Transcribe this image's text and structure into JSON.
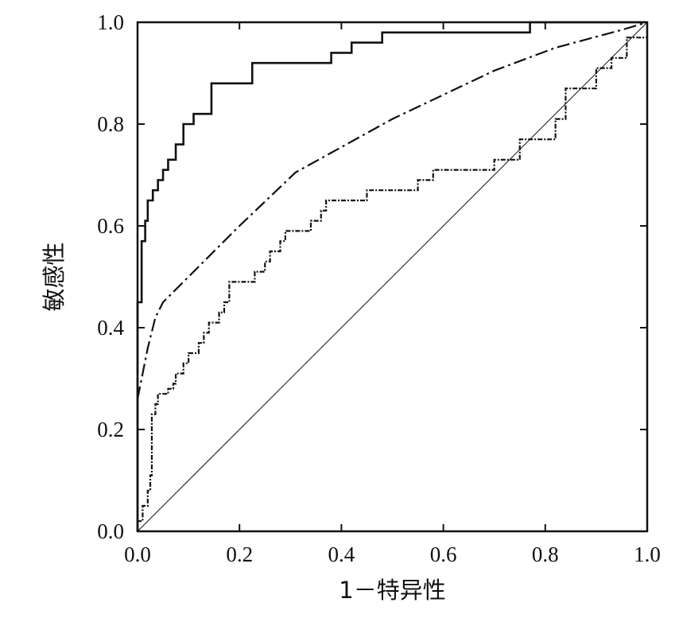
{
  "chart_data": {
    "type": "line",
    "title": "",
    "xlabel": "1－特异性",
    "ylabel": "敏感性",
    "xlim": [
      0,
      1
    ],
    "ylim": [
      0,
      1
    ],
    "x_ticks": [
      "0.0",
      "0.2",
      "0.4",
      "0.6",
      "0.8",
      "1.0"
    ],
    "y_ticks": [
      "0.0",
      "0.2",
      "0.4",
      "0.6",
      "0.8",
      "1.0"
    ],
    "grid": false,
    "legend": "none",
    "series": [
      {
        "style": "solid-thick",
        "step": true,
        "points": [
          [
            0,
            0
          ],
          [
            0,
            0.45
          ],
          [
            0.008,
            0.45
          ],
          [
            0.008,
            0.57
          ],
          [
            0.015,
            0.57
          ],
          [
            0.015,
            0.61
          ],
          [
            0.02,
            0.61
          ],
          [
            0.02,
            0.65
          ],
          [
            0.03,
            0.65
          ],
          [
            0.03,
            0.67
          ],
          [
            0.04,
            0.67
          ],
          [
            0.04,
            0.69
          ],
          [
            0.05,
            0.69
          ],
          [
            0.05,
            0.71
          ],
          [
            0.06,
            0.71
          ],
          [
            0.06,
            0.73
          ],
          [
            0.075,
            0.73
          ],
          [
            0.075,
            0.76
          ],
          [
            0.09,
            0.76
          ],
          [
            0.09,
            0.8
          ],
          [
            0.11,
            0.8
          ],
          [
            0.11,
            0.82
          ],
          [
            0.145,
            0.82
          ],
          [
            0.145,
            0.88
          ],
          [
            0.225,
            0.88
          ],
          [
            0.225,
            0.92
          ],
          [
            0.38,
            0.92
          ],
          [
            0.38,
            0.94
          ],
          [
            0.42,
            0.94
          ],
          [
            0.42,
            0.96
          ],
          [
            0.48,
            0.96
          ],
          [
            0.48,
            0.98
          ],
          [
            0.77,
            0.98
          ],
          [
            0.77,
            1.0
          ],
          [
            1.0,
            1.0
          ]
        ]
      },
      {
        "style": "dash-dot",
        "step": false,
        "points": [
          [
            0,
            0.26
          ],
          [
            0.01,
            0.31
          ],
          [
            0.02,
            0.36
          ],
          [
            0.035,
            0.42
          ],
          [
            0.05,
            0.45
          ],
          [
            0.1,
            0.5
          ],
          [
            0.2,
            0.6
          ],
          [
            0.31,
            0.705
          ],
          [
            0.5,
            0.81
          ],
          [
            0.7,
            0.905
          ],
          [
            0.82,
            0.95
          ],
          [
            0.95,
            0.985
          ],
          [
            1.0,
            1.0
          ]
        ]
      },
      {
        "style": "dotted-dash",
        "step": true,
        "points": [
          [
            0,
            0
          ],
          [
            0,
            0.02
          ],
          [
            0.01,
            0.02
          ],
          [
            0.01,
            0.05
          ],
          [
            0.02,
            0.05
          ],
          [
            0.02,
            0.08
          ],
          [
            0.025,
            0.08
          ],
          [
            0.025,
            0.11
          ],
          [
            0.028,
            0.11
          ],
          [
            0.028,
            0.23
          ],
          [
            0.035,
            0.23
          ],
          [
            0.035,
            0.25
          ],
          [
            0.04,
            0.25
          ],
          [
            0.04,
            0.27
          ],
          [
            0.06,
            0.27
          ],
          [
            0.06,
            0.28
          ],
          [
            0.07,
            0.28
          ],
          [
            0.07,
            0.29
          ],
          [
            0.075,
            0.29
          ],
          [
            0.075,
            0.31
          ],
          [
            0.09,
            0.31
          ],
          [
            0.09,
            0.33
          ],
          [
            0.1,
            0.33
          ],
          [
            0.1,
            0.35
          ],
          [
            0.12,
            0.35
          ],
          [
            0.12,
            0.37
          ],
          [
            0.13,
            0.37
          ],
          [
            0.13,
            0.39
          ],
          [
            0.14,
            0.39
          ],
          [
            0.14,
            0.41
          ],
          [
            0.16,
            0.41
          ],
          [
            0.16,
            0.43
          ],
          [
            0.17,
            0.43
          ],
          [
            0.17,
            0.45
          ],
          [
            0.18,
            0.45
          ],
          [
            0.18,
            0.49
          ],
          [
            0.23,
            0.49
          ],
          [
            0.23,
            0.51
          ],
          [
            0.25,
            0.51
          ],
          [
            0.25,
            0.53
          ],
          [
            0.26,
            0.53
          ],
          [
            0.26,
            0.55
          ],
          [
            0.28,
            0.55
          ],
          [
            0.28,
            0.57
          ],
          [
            0.29,
            0.57
          ],
          [
            0.29,
            0.59
          ],
          [
            0.34,
            0.59
          ],
          [
            0.34,
            0.61
          ],
          [
            0.36,
            0.61
          ],
          [
            0.36,
            0.63
          ],
          [
            0.37,
            0.63
          ],
          [
            0.37,
            0.65
          ],
          [
            0.45,
            0.65
          ],
          [
            0.45,
            0.67
          ],
          [
            0.55,
            0.67
          ],
          [
            0.55,
            0.69
          ],
          [
            0.58,
            0.69
          ],
          [
            0.58,
            0.71
          ],
          [
            0.7,
            0.71
          ],
          [
            0.7,
            0.73
          ],
          [
            0.75,
            0.73
          ],
          [
            0.75,
            0.77
          ],
          [
            0.82,
            0.77
          ],
          [
            0.82,
            0.81
          ],
          [
            0.84,
            0.81
          ],
          [
            0.84,
            0.87
          ],
          [
            0.9,
            0.87
          ],
          [
            0.9,
            0.91
          ],
          [
            0.93,
            0.91
          ],
          [
            0.93,
            0.93
          ],
          [
            0.96,
            0.93
          ],
          [
            0.96,
            0.97
          ],
          [
            1.0,
            0.97
          ],
          [
            1.0,
            1.0
          ]
        ]
      },
      {
        "style": "reference",
        "step": false,
        "points": [
          [
            0,
            0
          ],
          [
            1,
            1
          ]
        ]
      }
    ]
  }
}
